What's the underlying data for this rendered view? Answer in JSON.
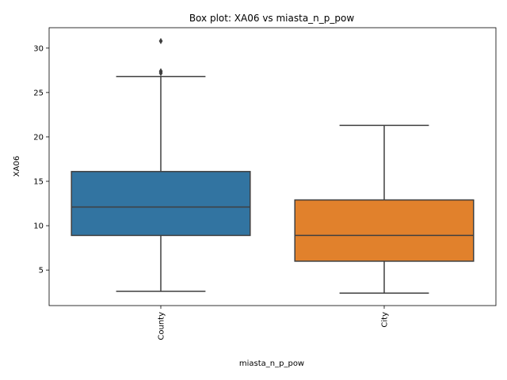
{
  "chart_data": {
    "type": "box",
    "title": "Box plot: XA06 vs miasta_n_p_pow",
    "xlabel": "miasta_n_p_pow",
    "ylabel": "XA06",
    "ylim": [
      1.0,
      32.3
    ],
    "yticks": [
      5,
      10,
      15,
      20,
      25,
      30
    ],
    "grid": false,
    "categories": [
      "County",
      "City"
    ],
    "boxes": [
      {
        "category": "County",
        "whisker_low": 2.6,
        "q1": 8.9,
        "median": 12.1,
        "q3": 16.1,
        "whisker_high": 26.8,
        "outliers": [
          27.2,
          27.4,
          30.8
        ],
        "color": "#3274a1"
      },
      {
        "category": "City",
        "whisker_low": 2.4,
        "q1": 6.0,
        "median": 8.9,
        "q3": 12.9,
        "whisker_high": 21.3,
        "outliers": [],
        "color": "#e1812c"
      }
    ]
  }
}
